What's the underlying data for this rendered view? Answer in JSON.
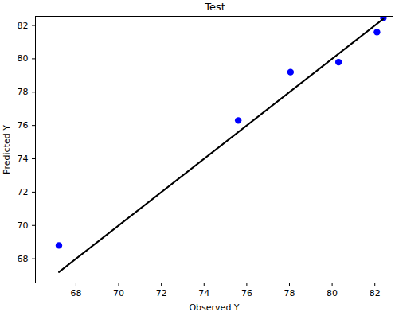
{
  "chart_data": {
    "type": "scatter",
    "title": "Test",
    "x_label": "Observed Y",
    "y_label": "Predicted Y",
    "series": [
      {
        "type": "scatter",
        "color": "#0000ff",
        "marker": "circle",
        "x": [
          67.2,
          75.6,
          78.05,
          80.3,
          82.1,
          82.4
        ],
        "values": [
          68.8,
          76.3,
          79.2,
          79.8,
          81.6,
          82.45
        ]
      },
      {
        "type": "line",
        "color": "#000000",
        "line_style": "solid",
        "x": [
          67.2,
          82.4
        ],
        "values": [
          67.2,
          82.4
        ]
      }
    ],
    "xlim": [
      66.1,
      82.85
    ],
    "ylim": [
      66.55,
      82.55
    ],
    "xticks": [
      68,
      70,
      72,
      74,
      76,
      78,
      80,
      82
    ],
    "yticks": [
      68,
      70,
      72,
      74,
      76,
      78,
      80,
      82
    ],
    "grid": false
  }
}
